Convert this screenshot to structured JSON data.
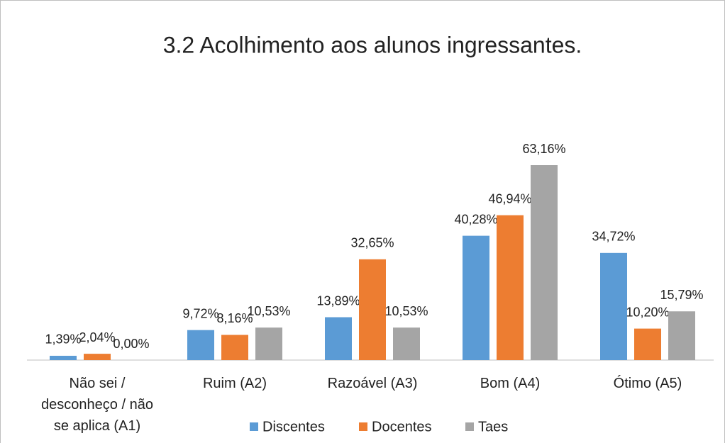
{
  "chart_data": {
    "type": "bar",
    "title": "3.2 Acolhimento aos alunos ingressantes.",
    "categories": [
      "Não sei / desconheço / não se aplica (A1)",
      "Ruim (A2)",
      "Razoável (A3)",
      "Bom (A4)",
      "Ótimo (A5)"
    ],
    "series": [
      {
        "name": "Discentes",
        "color": "#5b9bd5",
        "values": [
          1.39,
          9.72,
          13.89,
          40.28,
          34.72
        ],
        "value_labels": [
          "1,39%",
          "9,72%",
          "13,89%",
          "40,28%",
          "34,72%"
        ]
      },
      {
        "name": "Docentes",
        "color": "#ed7d31",
        "values": [
          2.04,
          8.16,
          32.65,
          46.94,
          10.2
        ],
        "value_labels": [
          "2,04%",
          "8,16%",
          "32,65%",
          "46,94%",
          "10,20%"
        ]
      },
      {
        "name": "Taes",
        "color": "#a5a5a5",
        "values": [
          0,
          10.53,
          10.53,
          63.16,
          15.79
        ],
        "value_labels": [
          "0,00%",
          "10,53%",
          "10,53%",
          "63,16%",
          "15,79%"
        ]
      }
    ],
    "legend": "bottom"
  }
}
